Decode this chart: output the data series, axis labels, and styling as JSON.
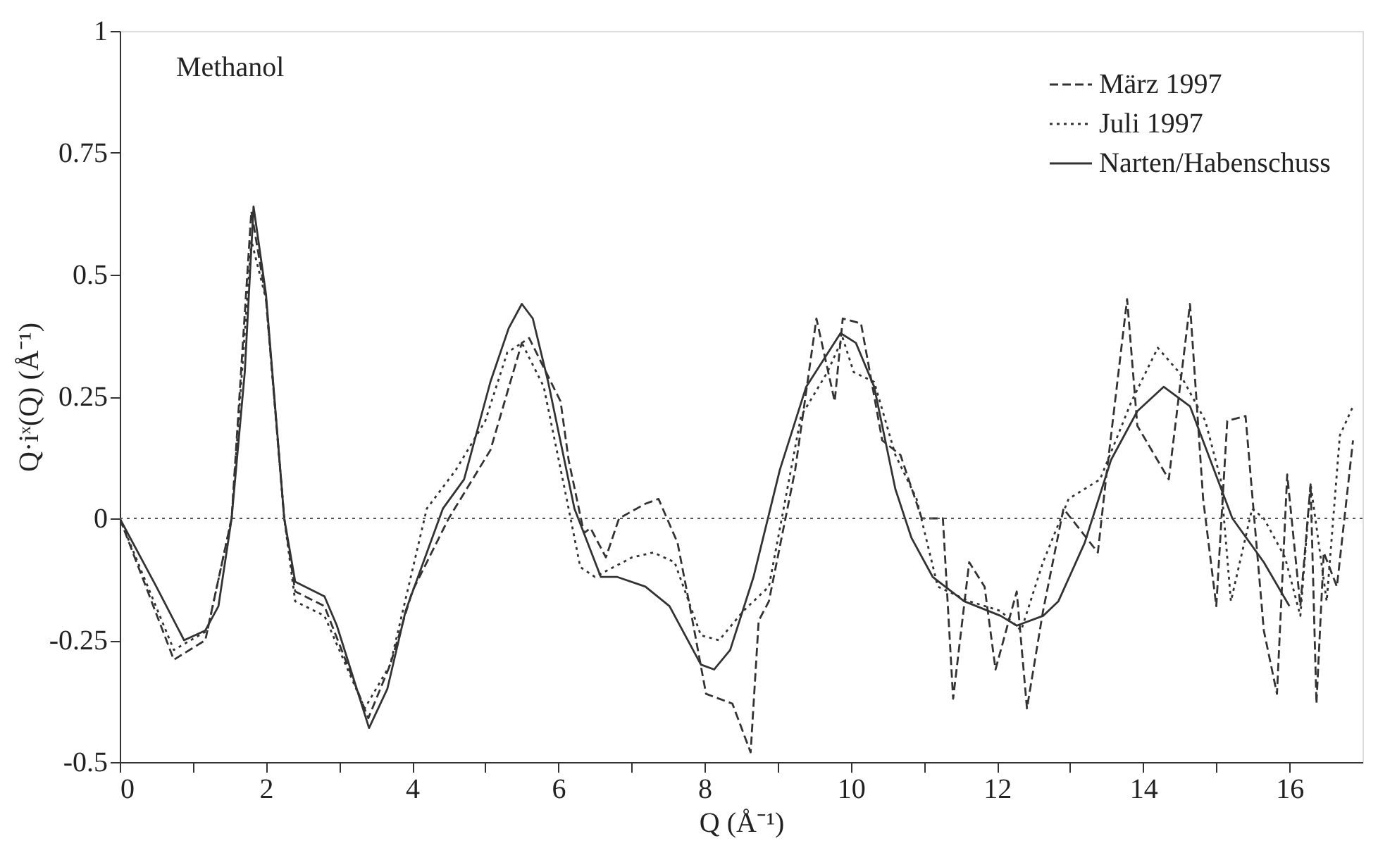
{
  "chart_data": {
    "type": "line",
    "xlabel": "Q (Å⁻¹)",
    "ylabel": "Q·iˣ(Q) (Å⁻¹)",
    "annotations": [
      "Methanol"
    ],
    "xlim": [
      0,
      17
    ],
    "xticks": [
      0,
      {
        "value": 1,
        "label": null
      },
      2,
      {
        "value": 3,
        "label": null
      },
      4,
      {
        "value": 5,
        "label": null
      },
      6,
      {
        "value": 7,
        "label": null
      },
      8,
      {
        "value": 9,
        "label": null
      },
      10,
      {
        "value": 11,
        "label": null
      },
      12,
      {
        "value": 13,
        "label": null
      },
      14,
      {
        "value": 15,
        "label": null
      },
      16
    ],
    "ylim": [
      -0.5,
      1
    ],
    "yticks": [
      -0.5,
      -0.25,
      0,
      0.25,
      0.5,
      0.75,
      1
    ],
    "grid": false,
    "legend": "top right",
    "ref_lines": [
      {
        "axis": "y",
        "value": 0,
        "line_style": "dotted",
        "color": "#555555"
      }
    ],
    "series": [
      {
        "name": "März 1997",
        "color": "#333333",
        "line_style": "dashed",
        "x": [
          0,
          0.74,
          1.17,
          1.53,
          1.8,
          2.0,
          2.25,
          2.4,
          2.8,
          3.4,
          3.7,
          4.0,
          4.5,
          5.07,
          5.5,
          5.6,
          6.03,
          6.14,
          6.35,
          6.44,
          6.65,
          6.83,
          7.19,
          7.37,
          7.63,
          7.81,
          8.02,
          8.38,
          8.63,
          8.74,
          8.88,
          9.24,
          9.53,
          9.78,
          9.89,
          10.14,
          10.43,
          10.68,
          10.97,
          11.26,
          11.4,
          11.62,
          11.83,
          11.98,
          12.27,
          12.41,
          12.63,
          12.91,
          13.38,
          13.49,
          13.78,
          13.92,
          14.35,
          14.64,
          14.82,
          15.0,
          15.15,
          15.4,
          15.65,
          15.83,
          15.97,
          16.15,
          16.29,
          16.37,
          16.47,
          16.65,
          16.87
        ],
        "values": [
          0,
          -0.29,
          -0.25,
          0,
          0.63,
          0.45,
          0,
          -0.15,
          -0.18,
          -0.41,
          -0.3,
          -0.15,
          0.0,
          0.14,
          0.36,
          0.37,
          0.24,
          0.12,
          -0.03,
          -0.02,
          -0.08,
          0,
          0.03,
          0.04,
          -0.05,
          -0.19,
          -0.36,
          -0.38,
          -0.48,
          -0.21,
          -0.17,
          0.1,
          0.41,
          0.24,
          0.41,
          0.4,
          0.16,
          0.13,
          0,
          0,
          -0.37,
          -0.09,
          -0.14,
          -0.31,
          -0.15,
          -0.39,
          -0.19,
          0.02,
          -0.07,
          0.08,
          0.45,
          0.19,
          0.08,
          0.44,
          0.04,
          -0.18,
          0.2,
          0.21,
          -0.23,
          -0.36,
          0.09,
          -0.18,
          0.07,
          -0.38,
          -0.07,
          -0.14,
          0.16
        ]
      },
      {
        "name": "Juli 1997",
        "color": "#333333",
        "line_style": "dotted",
        "x": [
          0,
          0.74,
          1.2,
          1.53,
          1.8,
          2.0,
          2.25,
          2.4,
          2.8,
          3.35,
          3.7,
          4.2,
          4.6,
          5.0,
          5.3,
          5.5,
          5.8,
          6.1,
          6.3,
          6.5,
          7.01,
          7.3,
          7.59,
          7.95,
          8.2,
          8.53,
          8.88,
          9.32,
          9.68,
          9.89,
          10.04,
          10.32,
          10.61,
          10.9,
          11.19,
          11.62,
          12.05,
          12.33,
          12.63,
          12.98,
          13.41,
          13.84,
          14.2,
          14.49,
          14.85,
          15.06,
          15.2,
          15.49,
          15.65,
          15.94,
          16.15,
          16.29,
          16.51,
          16.69,
          16.87
        ],
        "values": [
          0,
          -0.27,
          -0.23,
          0,
          0.57,
          0.45,
          0,
          -0.17,
          -0.2,
          -0.39,
          -0.3,
          0.02,
          0.1,
          0.2,
          0.34,
          0.36,
          0.27,
          0.05,
          -0.1,
          -0.12,
          -0.08,
          -0.07,
          -0.09,
          -0.24,
          -0.25,
          -0.19,
          -0.14,
          0.21,
          0.3,
          0.37,
          0.3,
          0.28,
          0.13,
          0.04,
          -0.14,
          -0.17,
          -0.19,
          -0.23,
          -0.09,
          0.04,
          0.08,
          0.24,
          0.35,
          0.3,
          0.2,
          0.08,
          -0.17,
          0.02,
          0.0,
          -0.08,
          -0.2,
          0.07,
          -0.17,
          0.17,
          0.23
        ]
      },
      {
        "name": "Narten/Habenschuss",
        "color": "#333333",
        "line_style": "solid",
        "x": [
          0,
          0.5,
          0.88,
          1.17,
          1.35,
          1.53,
          1.71,
          1.83,
          2.0,
          2.25,
          2.4,
          2.8,
          2.97,
          3.41,
          3.66,
          3.91,
          4.42,
          4.71,
          5.07,
          5.32,
          5.5,
          5.65,
          5.86,
          6.22,
          6.58,
          6.8,
          7.19,
          7.52,
          7.95,
          8.13,
          8.35,
          8.67,
          9.03,
          9.39,
          9.86,
          10.07,
          10.32,
          10.61,
          10.83,
          11.12,
          11.55,
          12.05,
          12.27,
          12.63,
          12.84,
          13.2,
          13.56,
          13.92,
          14.28,
          14.64,
          15.22,
          15.65,
          16.0
        ],
        "values": [
          0,
          -0.14,
          -0.25,
          -0.23,
          -0.18,
          0,
          0.3,
          0.64,
          0.46,
          0,
          -0.13,
          -0.16,
          -0.22,
          -0.43,
          -0.35,
          -0.19,
          0.02,
          0.08,
          0.28,
          0.39,
          0.44,
          0.41,
          0.28,
          0.02,
          -0.12,
          -0.12,
          -0.14,
          -0.18,
          -0.3,
          -0.31,
          -0.27,
          -0.12,
          0.1,
          0.27,
          0.38,
          0.36,
          0.27,
          0.06,
          -0.04,
          -0.12,
          -0.17,
          -0.2,
          -0.22,
          -0.2,
          -0.17,
          -0.05,
          0.12,
          0.22,
          0.27,
          0.23,
          0.0,
          -0.09,
          -0.18
        ]
      }
    ]
  }
}
